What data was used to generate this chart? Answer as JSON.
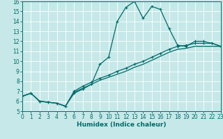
{
  "xlabel": "Humidex (Indice chaleur)",
  "bg_color": "#c6e8e8",
  "grid_color": "#ffffff",
  "line_color": "#006b6b",
  "xlim": [
    0,
    23
  ],
  "ylim": [
    5,
    16
  ],
  "xticks": [
    0,
    1,
    2,
    3,
    4,
    5,
    6,
    7,
    8,
    9,
    10,
    11,
    12,
    13,
    14,
    15,
    16,
    17,
    18,
    19,
    20,
    21,
    22,
    23
  ],
  "yticks": [
    5,
    6,
    7,
    8,
    9,
    10,
    11,
    12,
    13,
    14,
    15,
    16
  ],
  "line1_x": [
    0,
    1,
    2,
    3,
    4,
    5,
    6,
    7,
    8,
    9,
    10,
    11,
    12,
    13,
    14,
    15,
    16,
    17,
    18,
    19,
    20,
    21,
    22,
    23
  ],
  "line1_y": [
    6.5,
    6.8,
    6.0,
    5.9,
    5.8,
    5.5,
    6.8,
    7.2,
    7.7,
    9.7,
    10.4,
    14.0,
    15.4,
    16.0,
    14.3,
    15.5,
    15.2,
    13.3,
    11.6,
    11.5,
    12.0,
    12.0,
    11.8,
    11.5
  ],
  "line2_x": [
    0,
    1,
    2,
    3,
    4,
    5,
    6,
    7,
    8,
    9,
    10,
    11,
    12,
    13,
    14,
    15,
    16,
    17,
    18,
    19,
    20,
    21,
    22,
    23
  ],
  "line2_y": [
    6.5,
    6.8,
    6.0,
    5.9,
    5.8,
    5.5,
    7.0,
    7.5,
    7.9,
    8.3,
    8.6,
    9.0,
    9.3,
    9.7,
    10.0,
    10.4,
    10.8,
    11.2,
    11.5,
    11.6,
    11.8,
    11.8,
    11.8,
    11.5
  ],
  "line3_x": [
    0,
    1,
    2,
    3,
    4,
    5,
    6,
    7,
    8,
    9,
    10,
    11,
    12,
    13,
    14,
    15,
    16,
    17,
    18,
    19,
    20,
    21,
    22,
    23
  ],
  "line3_y": [
    6.5,
    6.8,
    6.0,
    5.9,
    5.8,
    5.5,
    6.9,
    7.3,
    7.7,
    8.1,
    8.4,
    8.7,
    9.0,
    9.4,
    9.7,
    10.1,
    10.5,
    10.9,
    11.2,
    11.3,
    11.5,
    11.5,
    11.5,
    11.5
  ],
  "tick_labelsize": 5.5,
  "xlabel_fontsize": 6.5,
  "linewidth": 0.9,
  "markersize": 3.5
}
